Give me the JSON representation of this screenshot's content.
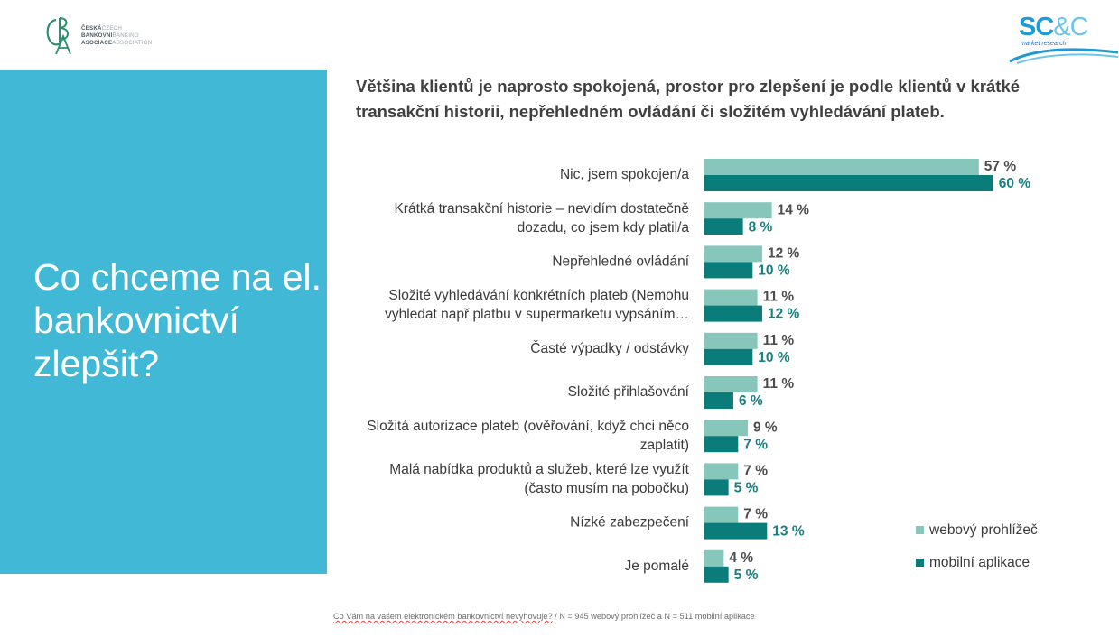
{
  "logos": {
    "cba": {
      "line1_cz": "ČESKÁ",
      "line1_en": "CZECH",
      "line2_cz": "BANKOVNÍ",
      "line2_en": "BANKING",
      "line3_cz": "ASOCIACE",
      "line3_en": "ASSOCIATION"
    },
    "scc": {
      "title": "SC",
      "amp": "&C",
      "sub": "market research"
    }
  },
  "panel": {
    "title": "Co chceme na el. bankovnictví zlepšit?"
  },
  "headline": "Většina klientů je naprosto spokojená, prostor pro zlepšení je podle klientů v krátké transakční historii, nepřehledném ovládání či složitém vyhledávání plateb.",
  "colors": {
    "web": "#86c6bb",
    "mobile": "#0a7c79",
    "panel": "#41b8d5"
  },
  "chart_data": {
    "type": "bar",
    "orientation": "horizontal",
    "categories": [
      [
        "Nic, jsem spokojen/a"
      ],
      [
        "Krátká transakční historie – nevidím dostatečně",
        "dozadu, co jsem kdy platil/a"
      ],
      [
        "Nepřehledné ovládání"
      ],
      [
        "Složité vyhledávání konkrétních plateb (Nemohu",
        "vyhledat např platbu v supermarketu vypsáním…"
      ],
      [
        "Časté výpadky / odstávky"
      ],
      [
        "Složité přihlašování"
      ],
      [
        "Složitá autorizace plateb (ověřování, když chci něco",
        "zaplatit)"
      ],
      [
        "Malá nabídka produktů a služeb, které lze využít",
        "(často musím na pobočku)"
      ],
      [
        "Nízké zabezpečení"
      ],
      [
        "Je pomalé"
      ]
    ],
    "series": [
      {
        "name": "webový prohlížeč",
        "values": [
          57,
          14,
          12,
          11,
          11,
          11,
          9,
          7,
          7,
          4
        ]
      },
      {
        "name": "mobilní aplikace",
        "values": [
          60,
          8,
          10,
          12,
          10,
          6,
          7,
          5,
          13,
          5
        ]
      }
    ],
    "value_suffix": " %",
    "xlim": [
      0,
      60
    ],
    "legend_position": "bottom-right"
  },
  "footnote": {
    "question": "Co Vám na vašem elektronickém bankovnictví nevyhovuje?",
    "rest": " / N = 945  webový prohlížeč a N = 511 mobilní aplikace"
  }
}
